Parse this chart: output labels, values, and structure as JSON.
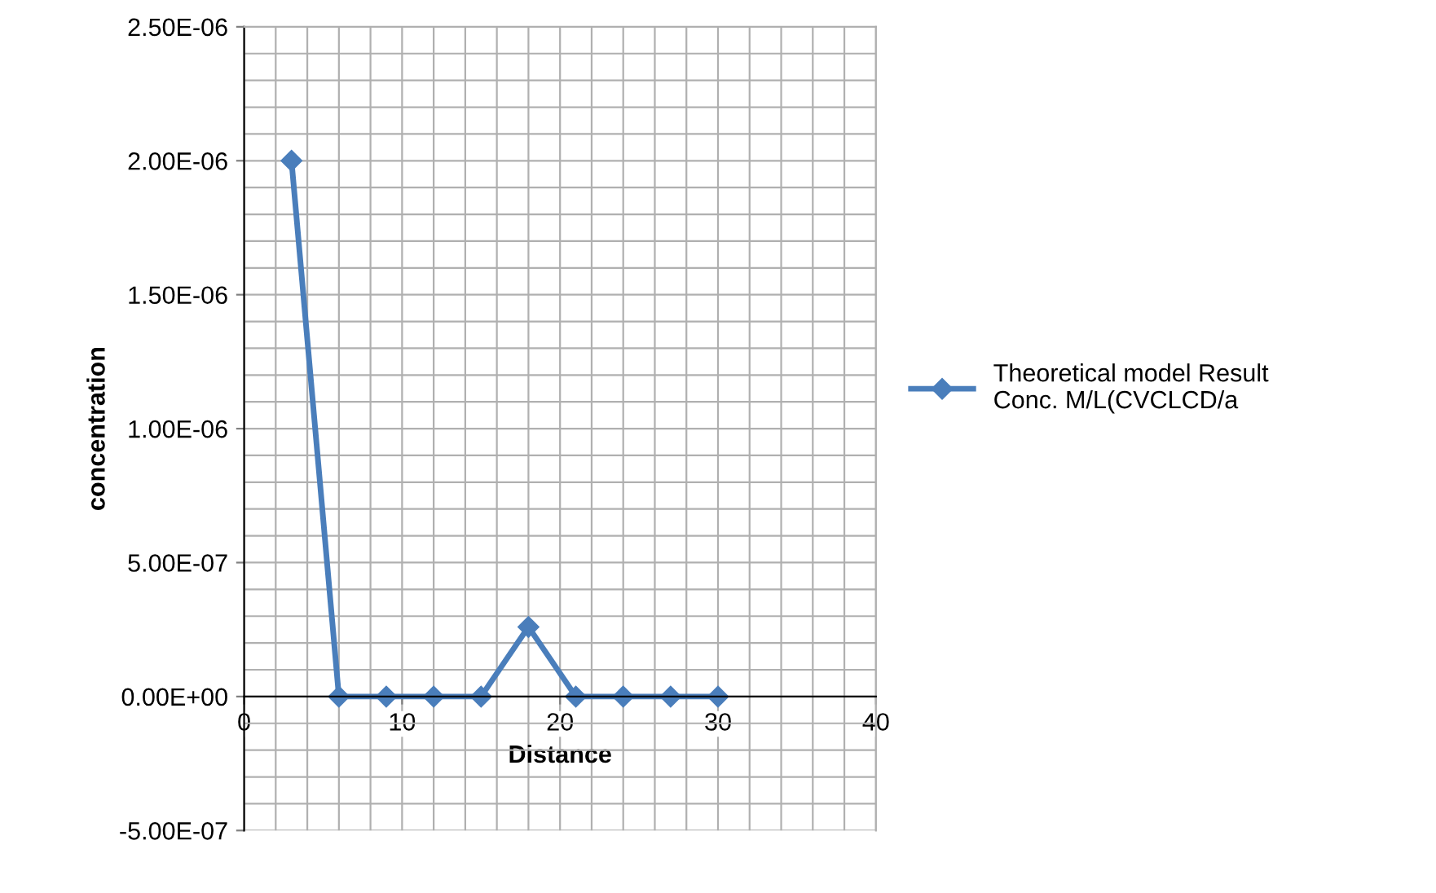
{
  "chart_data": {
    "type": "line",
    "xlabel": "Distance",
    "ylabel": "concentration",
    "series": [
      {
        "name": "Theoretical model Result Conc. M/L(CVCLCD/a",
        "color": "#4a7ebb",
        "x": [
          3,
          6,
          9,
          12,
          15,
          18,
          21,
          24,
          27,
          30
        ],
        "values": [
          2e-06,
          0,
          0,
          0,
          0,
          2.6e-07,
          0,
          0,
          0,
          0
        ]
      }
    ],
    "xlim": [
      0,
      40
    ],
    "xticks": [
      0,
      10,
      20,
      30,
      40
    ],
    "ylim": [
      -5e-07,
      2.5e-06
    ],
    "yticks": [
      {
        "value": -5e-07,
        "label": "-5.00E-07"
      },
      {
        "value": 0,
        "label": "0.00E+00"
      },
      {
        "value": 5e-07,
        "label": "5.00E-07"
      },
      {
        "value": 1e-06,
        "label": "1.00E-06"
      },
      {
        "value": 1.5e-06,
        "label": "1.50E-06"
      },
      {
        "value": 2e-06,
        "label": "2.00E-06"
      },
      {
        "value": 2.5e-06,
        "label": "2.50E-06"
      }
    ],
    "grid": true,
    "legend": "right",
    "marker": "diamond",
    "line_style": "solid"
  }
}
